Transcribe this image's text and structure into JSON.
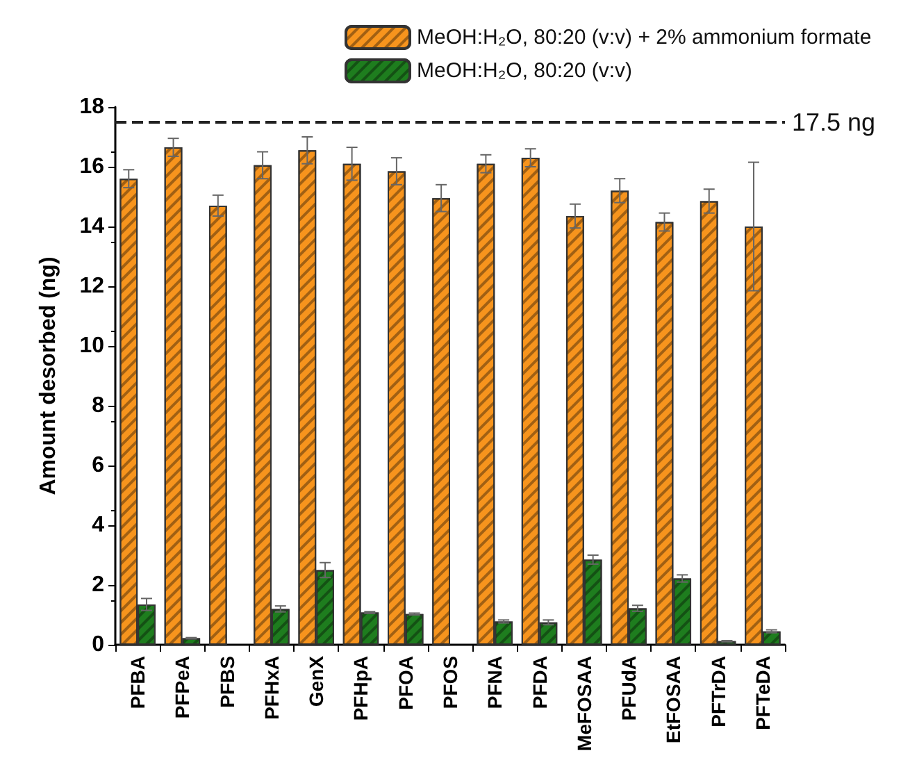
{
  "chart_data": {
    "type": "bar",
    "ylabel": "Amount desorbed (ng)",
    "categories": [
      "PFBA",
      "PFPeA",
      "PFBS",
      "PFHxA",
      "GenX",
      "PFHpA",
      "PFOA",
      "PFOS",
      "PFNA",
      "PFDA",
      "MeFOSAA",
      "PFUdA",
      "EtFOSAA",
      "PFTrDA",
      "PFTeDA"
    ],
    "series": [
      {
        "name": "MeOH:H₂O, 80:20 (v:v) + 2% ammonium formate",
        "color": "#f7941d",
        "values": [
          15.6,
          16.65,
          14.7,
          16.05,
          16.55,
          16.1,
          15.85,
          14.95,
          16.1,
          16.3,
          14.35,
          15.2,
          14.15,
          14.85,
          14.0
        ],
        "errors": [
          0.3,
          0.3,
          0.35,
          0.45,
          0.45,
          0.55,
          0.45,
          0.45,
          0.3,
          0.3,
          0.4,
          0.4,
          0.3,
          0.4,
          2.15
        ]
      },
      {
        "name": "MeOH:H₂O, 80:20 (v:v)",
        "color": "#1e7d1e",
        "values": [
          1.35,
          0.22,
          null,
          1.2,
          2.5,
          1.08,
          1.03,
          null,
          0.78,
          0.75,
          2.85,
          1.22,
          2.22,
          0.12,
          0.45
        ],
        "errors": [
          0.2,
          0.02,
          null,
          0.1,
          0.25,
          0.03,
          0.03,
          null,
          0.05,
          0.08,
          0.15,
          0.1,
          0.12,
          0.02,
          0.05
        ]
      }
    ],
    "ylim": [
      0,
      18
    ],
    "yticks": [
      0,
      2,
      4,
      6,
      8,
      10,
      12,
      14,
      16,
      18
    ],
    "ref_lines": [
      {
        "axis": "y",
        "value": 17.5,
        "label": "17.5 ng",
        "line_style": "dashed",
        "color": "#222222"
      }
    ],
    "legend": "top",
    "grid": false
  }
}
